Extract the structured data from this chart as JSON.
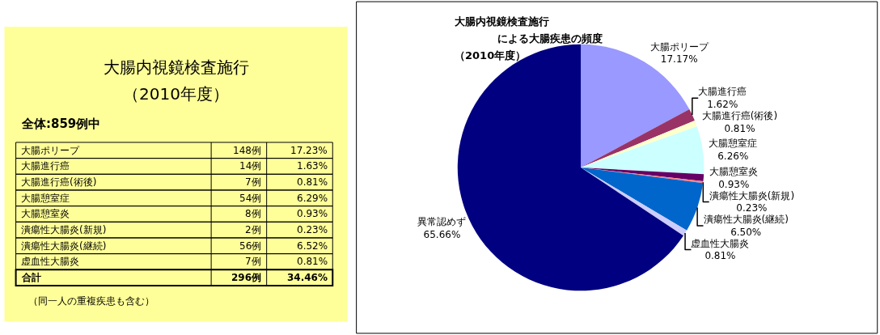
{
  "chart_data": [
    {
      "type": "other",
      "title": "大腸内視鏡検査施行",
      "subtitle": "（2010年度）",
      "categories": [
        "大腸ポリープ",
        "大腸進行癌",
        "大腸進行癌(術後)",
        "大腸憩室症",
        "大腸憩室炎",
        "潰瘍性大腸炎(新規)",
        "潰瘍性大腸炎(継続)",
        "虚血性大腸炎",
        "合計"
      ],
      "series": [
        {
          "values": [
            148,
            14,
            7,
            54,
            8,
            2,
            56,
            7,
            296
          ],
          "value_labels": [
            "148例",
            "14例",
            "7例",
            "54例",
            "8例",
            "2例",
            "56例",
            "7例",
            "296例"
          ]
        },
        {
          "values": [
            17.23,
            1.63,
            0.81,
            6.29,
            0.93,
            0.23,
            6.52,
            0.81,
            34.46
          ],
          "value_labels": [
            "17.23%",
            "1.63%",
            "0.81%",
            "6.29%",
            "0.93%",
            "0.23%",
            "6.52%",
            "0.81%",
            "34.46%"
          ]
        }
      ],
      "annotations": [
        "全体:859例中",
        "（同一人の重複疾患も含む）"
      ]
    },
    {
      "type": "pie",
      "title": "大腸内視鏡検査施行",
      "subtitle": "による大腸疾患の頻度",
      "annotations": [
        "（2010年度）"
      ],
      "categories": [
        "大腸ポリープ",
        "大腸進行癌",
        "大腸進行癌(術後)",
        "大腸憩室症",
        "大腸憩室炎",
        "潰瘍性大腸炎(新規)",
        "潰瘍性大腸炎(継続)",
        "虚血性大腸炎",
        "異常認めず"
      ],
      "values": [
        17.17,
        1.62,
        0.81,
        6.26,
        0.93,
        0.23,
        6.5,
        0.81,
        65.66
      ],
      "value_labels": [
        "17.17%",
        "1.62%",
        "0.81%",
        "6.26%",
        "0.93%",
        "0.23%",
        "6.50%",
        "0.81%",
        "65.66%"
      ],
      "colors": [
        "#9999ff",
        "#993366",
        "#ffffcc",
        "#ccffff",
        "#660066",
        "#ff8080",
        "#0066cc",
        "#ccccff",
        "#000080"
      ]
    }
  ]
}
